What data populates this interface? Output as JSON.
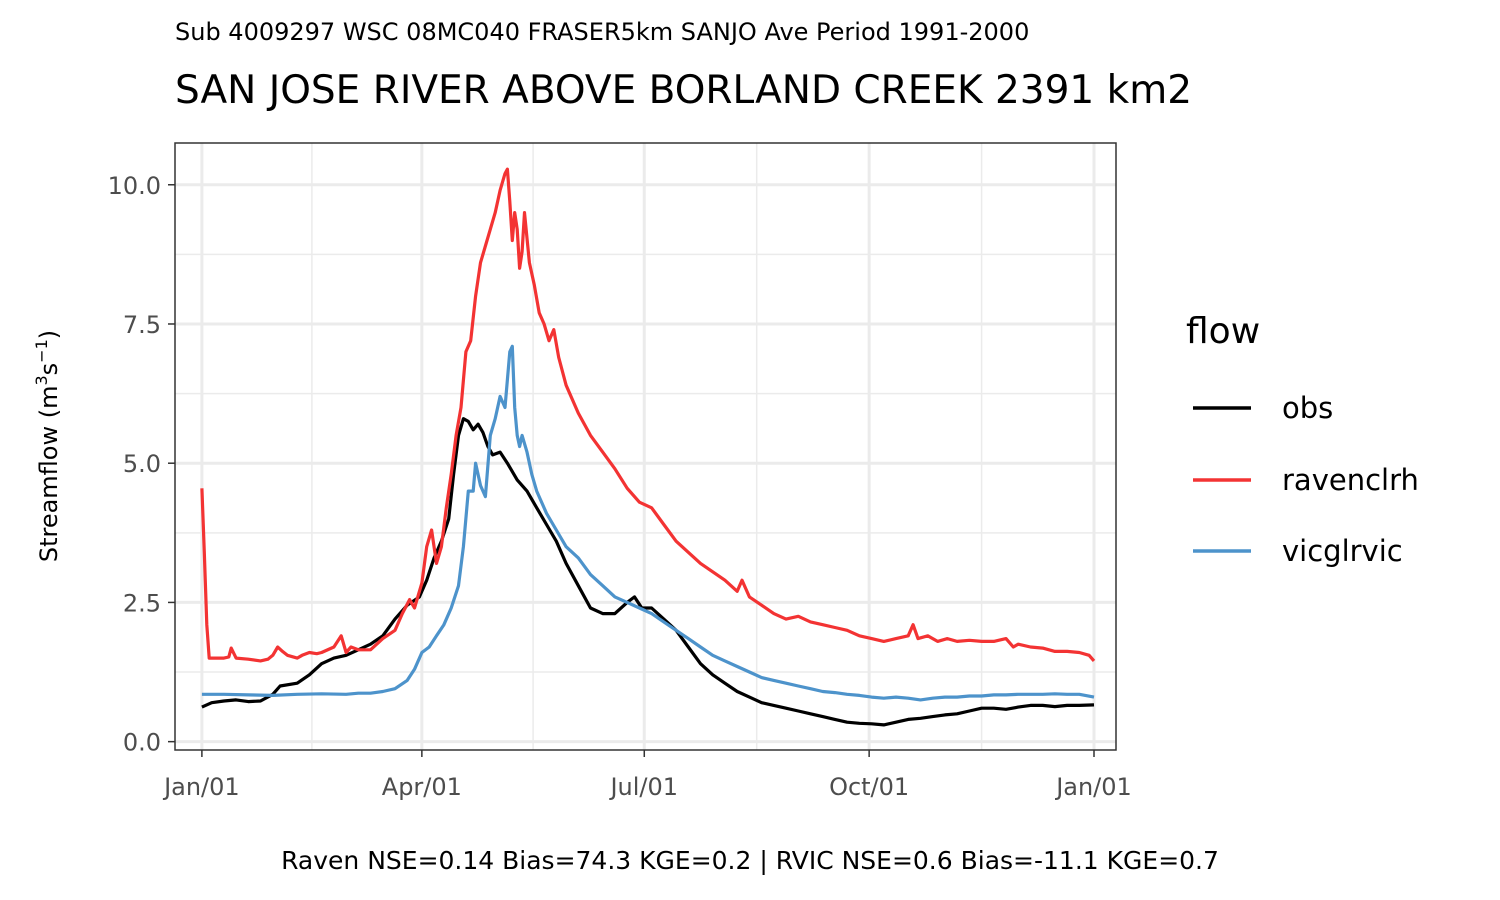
{
  "chart_data": {
    "type": "line",
    "subtitle": "Sub 4009297 WSC 08MC040 FRASER5km SANJO Ave Period 1991-2000",
    "title": "SAN JOSE RIVER ABOVE BORLAND CREEK 2391 km2",
    "ylabel": "Streamflow (m3s-1)",
    "ylabel_parts": {
      "main": "Streamflow (m",
      "sup1": "3",
      "mid": "s",
      "sup2": "−1",
      "end": ")"
    },
    "xlabel": "",
    "caption": "Raven NSE=0.14 Bias=74.3 KGE=0.2 | RVIC NSE=0.6 Bias=-11.1 KGE=0.7",
    "xlim_day": [
      -10,
      375
    ],
    "ylim": [
      -0.15,
      10.75
    ],
    "x_ticks": [
      {
        "day": 1,
        "label": "Jan/01"
      },
      {
        "day": 91,
        "label": "Apr/01"
      },
      {
        "day": 182,
        "label": "Jul/01"
      },
      {
        "day": 274,
        "label": "Oct/01"
      },
      {
        "day": 366,
        "label": "Jan/01"
      }
    ],
    "x_minor_days": [
      46,
      136.5,
      228,
      320
    ],
    "y_ticks": [
      {
        "value": 0.0,
        "label": "0.0"
      },
      {
        "value": 2.5,
        "label": "2.5"
      },
      {
        "value": 5.0,
        "label": "5.0"
      },
      {
        "value": 7.5,
        "label": "7.5"
      },
      {
        "value": 10.0,
        "label": "10.0"
      }
    ],
    "y_minor": [
      1.25,
      3.75,
      6.25,
      8.75
    ],
    "grid": true,
    "legend": {
      "title": "flow",
      "position": "right"
    },
    "series": [
      {
        "name": "obs",
        "color": "#000000",
        "points": [
          [
            1,
            0.62
          ],
          [
            5,
            0.7
          ],
          [
            10,
            0.73
          ],
          [
            15,
            0.75
          ],
          [
            20,
            0.72
          ],
          [
            25,
            0.73
          ],
          [
            30,
            0.85
          ],
          [
            33,
            1.0
          ],
          [
            40,
            1.05
          ],
          [
            45,
            1.2
          ],
          [
            50,
            1.4
          ],
          [
            55,
            1.5
          ],
          [
            60,
            1.55
          ],
          [
            65,
            1.65
          ],
          [
            70,
            1.75
          ],
          [
            75,
            1.9
          ],
          [
            80,
            2.2
          ],
          [
            85,
            2.45
          ],
          [
            90,
            2.6
          ],
          [
            93,
            2.9
          ],
          [
            96,
            3.3
          ],
          [
            99,
            3.6
          ],
          [
            102,
            4.0
          ],
          [
            104,
            4.8
          ],
          [
            106,
            5.5
          ],
          [
            108,
            5.8
          ],
          [
            110,
            5.75
          ],
          [
            112,
            5.6
          ],
          [
            114,
            5.7
          ],
          [
            116,
            5.55
          ],
          [
            118,
            5.3
          ],
          [
            120,
            5.15
          ],
          [
            123,
            5.2
          ],
          [
            126,
            5.0
          ],
          [
            130,
            4.7
          ],
          [
            134,
            4.5
          ],
          [
            138,
            4.2
          ],
          [
            142,
            3.9
          ],
          [
            146,
            3.6
          ],
          [
            150,
            3.2
          ],
          [
            155,
            2.8
          ],
          [
            160,
            2.4
          ],
          [
            165,
            2.3
          ],
          [
            170,
            2.3
          ],
          [
            175,
            2.5
          ],
          [
            178,
            2.6
          ],
          [
            181,
            2.4
          ],
          [
            185,
            2.4
          ],
          [
            190,
            2.2
          ],
          [
            195,
            2.0
          ],
          [
            200,
            1.7
          ],
          [
            205,
            1.4
          ],
          [
            210,
            1.2
          ],
          [
            215,
            1.05
          ],
          [
            220,
            0.9
          ],
          [
            225,
            0.8
          ],
          [
            230,
            0.7
          ],
          [
            235,
            0.65
          ],
          [
            240,
            0.6
          ],
          [
            245,
            0.55
          ],
          [
            250,
            0.5
          ],
          [
            255,
            0.45
          ],
          [
            260,
            0.4
          ],
          [
            265,
            0.35
          ],
          [
            270,
            0.33
          ],
          [
            275,
            0.32
          ],
          [
            280,
            0.3
          ],
          [
            285,
            0.35
          ],
          [
            290,
            0.4
          ],
          [
            295,
            0.42
          ],
          [
            300,
            0.45
          ],
          [
            305,
            0.48
          ],
          [
            310,
            0.5
          ],
          [
            315,
            0.55
          ],
          [
            320,
            0.6
          ],
          [
            325,
            0.6
          ],
          [
            330,
            0.58
          ],
          [
            335,
            0.62
          ],
          [
            340,
            0.65
          ],
          [
            345,
            0.65
          ],
          [
            350,
            0.63
          ],
          [
            355,
            0.65
          ],
          [
            360,
            0.65
          ],
          [
            366,
            0.66
          ]
        ]
      },
      {
        "name": "ravenclrh",
        "color": "#f33333",
        "points": [
          [
            1,
            4.55
          ],
          [
            2,
            3.4
          ],
          [
            3,
            2.1
          ],
          [
            4,
            1.5
          ],
          [
            10,
            1.5
          ],
          [
            12,
            1.52
          ],
          [
            13,
            1.68
          ],
          [
            15,
            1.5
          ],
          [
            20,
            1.48
          ],
          [
            25,
            1.45
          ],
          [
            28,
            1.48
          ],
          [
            30,
            1.55
          ],
          [
            32,
            1.7
          ],
          [
            34,
            1.62
          ],
          [
            36,
            1.55
          ],
          [
            40,
            1.5
          ],
          [
            42,
            1.55
          ],
          [
            45,
            1.6
          ],
          [
            48,
            1.58
          ],
          [
            50,
            1.6
          ],
          [
            55,
            1.7
          ],
          [
            58,
            1.9
          ],
          [
            60,
            1.6
          ],
          [
            62,
            1.7
          ],
          [
            65,
            1.65
          ],
          [
            70,
            1.65
          ],
          [
            75,
            1.85
          ],
          [
            80,
            2.0
          ],
          [
            83,
            2.3
          ],
          [
            86,
            2.55
          ],
          [
            88,
            2.4
          ],
          [
            91,
            2.85
          ],
          [
            93,
            3.5
          ],
          [
            95,
            3.8
          ],
          [
            97,
            3.2
          ],
          [
            99,
            3.5
          ],
          [
            101,
            4.2
          ],
          [
            103,
            4.8
          ],
          [
            105,
            5.5
          ],
          [
            107,
            6.0
          ],
          [
            109,
            7.0
          ],
          [
            111,
            7.2
          ],
          [
            113,
            8.0
          ],
          [
            115,
            8.6
          ],
          [
            117,
            8.9
          ],
          [
            119,
            9.2
          ],
          [
            121,
            9.5
          ],
          [
            123,
            9.9
          ],
          [
            125,
            10.2
          ],
          [
            126,
            10.28
          ],
          [
            127,
            9.7
          ],
          [
            128,
            9.0
          ],
          [
            129,
            9.5
          ],
          [
            130,
            9.2
          ],
          [
            131,
            8.5
          ],
          [
            132,
            8.8
          ],
          [
            133,
            9.5
          ],
          [
            135,
            8.6
          ],
          [
            137,
            8.2
          ],
          [
            139,
            7.7
          ],
          [
            141,
            7.5
          ],
          [
            143,
            7.2
          ],
          [
            145,
            7.4
          ],
          [
            147,
            6.9
          ],
          [
            150,
            6.4
          ],
          [
            155,
            5.9
          ],
          [
            160,
            5.5
          ],
          [
            165,
            5.2
          ],
          [
            170,
            4.9
          ],
          [
            175,
            4.55
          ],
          [
            180,
            4.3
          ],
          [
            185,
            4.2
          ],
          [
            190,
            3.9
          ],
          [
            195,
            3.6
          ],
          [
            200,
            3.4
          ],
          [
            205,
            3.2
          ],
          [
            210,
            3.05
          ],
          [
            215,
            2.9
          ],
          [
            220,
            2.7
          ],
          [
            222,
            2.9
          ],
          [
            225,
            2.6
          ],
          [
            230,
            2.45
          ],
          [
            235,
            2.3
          ],
          [
            240,
            2.2
          ],
          [
            245,
            2.25
          ],
          [
            250,
            2.15
          ],
          [
            255,
            2.1
          ],
          [
            260,
            2.05
          ],
          [
            265,
            2.0
          ],
          [
            270,
            1.9
          ],
          [
            275,
            1.85
          ],
          [
            280,
            1.8
          ],
          [
            285,
            1.85
          ],
          [
            290,
            1.9
          ],
          [
            292,
            2.1
          ],
          [
            294,
            1.85
          ],
          [
            298,
            1.9
          ],
          [
            302,
            1.8
          ],
          [
            306,
            1.85
          ],
          [
            310,
            1.8
          ],
          [
            315,
            1.82
          ],
          [
            320,
            1.8
          ],
          [
            325,
            1.8
          ],
          [
            330,
            1.85
          ],
          [
            333,
            1.7
          ],
          [
            335,
            1.75
          ],
          [
            340,
            1.7
          ],
          [
            345,
            1.68
          ],
          [
            350,
            1.62
          ],
          [
            355,
            1.62
          ],
          [
            360,
            1.6
          ],
          [
            364,
            1.55
          ],
          [
            366,
            1.45
          ]
        ]
      },
      {
        "name": "vicglrvic",
        "color": "#4d93cb",
        "points": [
          [
            1,
            0.85
          ],
          [
            10,
            0.85
          ],
          [
            20,
            0.84
          ],
          [
            30,
            0.83
          ],
          [
            40,
            0.85
          ],
          [
            50,
            0.86
          ],
          [
            60,
            0.85
          ],
          [
            65,
            0.87
          ],
          [
            70,
            0.87
          ],
          [
            75,
            0.9
          ],
          [
            80,
            0.95
          ],
          [
            85,
            1.1
          ],
          [
            88,
            1.3
          ],
          [
            91,
            1.6
          ],
          [
            94,
            1.7
          ],
          [
            97,
            1.9
          ],
          [
            100,
            2.1
          ],
          [
            103,
            2.4
          ],
          [
            106,
            2.8
          ],
          [
            108,
            3.5
          ],
          [
            110,
            4.5
          ],
          [
            112,
            4.5
          ],
          [
            113,
            5.0
          ],
          [
            115,
            4.6
          ],
          [
            117,
            4.4
          ],
          [
            119,
            5.5
          ],
          [
            121,
            5.8
          ],
          [
            123,
            6.2
          ],
          [
            125,
            6.0
          ],
          [
            126,
            6.5
          ],
          [
            127,
            7.0
          ],
          [
            128,
            7.1
          ],
          [
            129,
            6.0
          ],
          [
            130,
            5.5
          ],
          [
            131,
            5.3
          ],
          [
            132,
            5.5
          ],
          [
            134,
            5.2
          ],
          [
            136,
            4.8
          ],
          [
            138,
            4.5
          ],
          [
            142,
            4.1
          ],
          [
            146,
            3.8
          ],
          [
            150,
            3.5
          ],
          [
            155,
            3.3
          ],
          [
            160,
            3.0
          ],
          [
            165,
            2.8
          ],
          [
            170,
            2.6
          ],
          [
            175,
            2.5
          ],
          [
            180,
            2.4
          ],
          [
            185,
            2.3
          ],
          [
            190,
            2.15
          ],
          [
            195,
            2.0
          ],
          [
            200,
            1.85
          ],
          [
            205,
            1.7
          ],
          [
            210,
            1.55
          ],
          [
            215,
            1.45
          ],
          [
            220,
            1.35
          ],
          [
            225,
            1.25
          ],
          [
            230,
            1.15
          ],
          [
            235,
            1.1
          ],
          [
            240,
            1.05
          ],
          [
            245,
            1.0
          ],
          [
            250,
            0.95
          ],
          [
            255,
            0.9
          ],
          [
            260,
            0.88
          ],
          [
            265,
            0.85
          ],
          [
            270,
            0.83
          ],
          [
            275,
            0.8
          ],
          [
            280,
            0.78
          ],
          [
            285,
            0.8
          ],
          [
            290,
            0.78
          ],
          [
            295,
            0.75
          ],
          [
            300,
            0.78
          ],
          [
            305,
            0.8
          ],
          [
            310,
            0.8
          ],
          [
            315,
            0.82
          ],
          [
            320,
            0.82
          ],
          [
            325,
            0.84
          ],
          [
            330,
            0.84
          ],
          [
            335,
            0.85
          ],
          [
            340,
            0.85
          ],
          [
            345,
            0.85
          ],
          [
            350,
            0.86
          ],
          [
            355,
            0.85
          ],
          [
            360,
            0.85
          ],
          [
            366,
            0.8
          ]
        ]
      }
    ]
  }
}
